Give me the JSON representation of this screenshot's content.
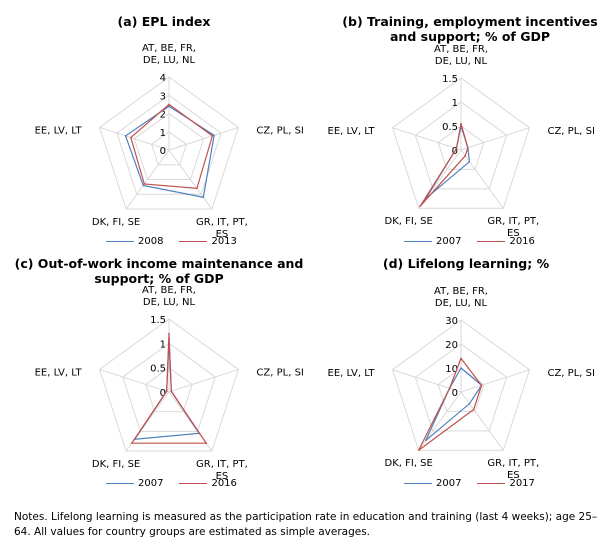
{
  "colors": {
    "grid": "#d9d9d9",
    "series_a": "#4f81bd",
    "series_b": "#c0504d"
  },
  "notes": "Notes. Lifelong learning is measured as the participation rate in education and training (last 4 weeks); age 25–64. All values for country groups are estimated as simple averages.",
  "chart_data": [
    {
      "type": "radar",
      "title": "(a)  EPL index",
      "categories": [
        "AT, BE, FR, DE, LU, NL",
        "CZ, PL, SI",
        "GR, IT, PT, ES",
        "DK, FI, SE",
        "EE, LV, LT"
      ],
      "axis_ticks": [
        "0",
        "1",
        "2",
        "3",
        "4"
      ],
      "range": [
        0,
        4
      ],
      "series": [
        {
          "name": "2008",
          "values": [
            2.4,
            2.6,
            3.2,
            2.4,
            2.5
          ]
        },
        {
          "name": "2013",
          "values": [
            2.5,
            2.5,
            2.6,
            2.3,
            2.2
          ]
        }
      ]
    },
    {
      "type": "radar",
      "title": "(b)  Training, employment incentives and support; % of GDP",
      "categories": [
        "AT, BE, FR, DE, LU, NL",
        "CZ, PL, SI",
        "GR, IT, PT, ES",
        "DK, FI, SE",
        "EE, LV, LT"
      ],
      "axis_ticks": [
        "0",
        "0.5",
        "1",
        "1.5"
      ],
      "range": [
        0,
        1.5
      ],
      "series": [
        {
          "name": "2007",
          "values": [
            0.5,
            0.15,
            0.3,
            1.25,
            0.1
          ]
        },
        {
          "name": "2016",
          "values": [
            0.55,
            0.15,
            0.15,
            1.45,
            0.1
          ]
        }
      ]
    },
    {
      "type": "radar",
      "title": "(c)  Out-of-work income maintenance and support; % of GDP",
      "categories": [
        "AT, BE, FR, DE, LU, NL",
        "CZ, PL, SI",
        "GR, IT, PT, ES",
        "DK, FI, SE",
        "EE, LV, LT"
      ],
      "axis_ticks": [
        "0",
        "0.5",
        "1",
        "1.5"
      ],
      "range": [
        0,
        1.5
      ],
      "series": [
        {
          "name": "2007",
          "values": [
            1.1,
            0.05,
            1.05,
            1.2,
            0.05
          ]
        },
        {
          "name": "2016",
          "values": [
            1.2,
            0.05,
            1.3,
            1.3,
            0.05
          ]
        }
      ]
    },
    {
      "type": "radar",
      "title": "(d)  Lifelong learning; %",
      "categories": [
        "AT, BE, FR, DE, LU, NL",
        "CZ, PL, SI",
        "GR, IT, PT, ES",
        "DK, FI, SE",
        "EE, LV, LT"
      ],
      "axis_ticks": [
        "0",
        "10",
        "20",
        "30"
      ],
      "range": [
        0,
        30
      ],
      "series": [
        {
          "name": "2007",
          "values": [
            10,
            9,
            6,
            25,
            5
          ]
        },
        {
          "name": "2017",
          "values": [
            14,
            9,
            9,
            30,
            5
          ]
        }
      ]
    }
  ]
}
